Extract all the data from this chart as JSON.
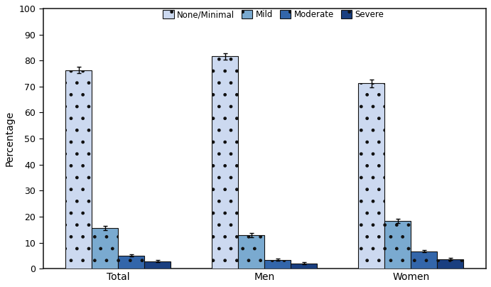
{
  "groups": [
    "Total",
    "Men",
    "Women"
  ],
  "categories": [
    "None/Minimal",
    "Mild",
    "Moderate",
    "Severe"
  ],
  "values": [
    [
      76.3,
      15.6,
      5.1,
      2.9
    ],
    [
      81.6,
      12.8,
      3.4,
      2.1
    ],
    [
      71.3,
      18.3,
      6.7,
      3.7
    ]
  ],
  "errors": [
    [
      1.2,
      0.7,
      0.4,
      0.3
    ],
    [
      1.3,
      0.8,
      0.4,
      0.3
    ],
    [
      1.5,
      0.8,
      0.5,
      0.4
    ]
  ],
  "colors": [
    "#ccd9f0",
    "#7aaad0",
    "#3366aa",
    "#1a3f80"
  ],
  "hatch_patterns": [
    "....",
    "....",
    "....",
    "...."
  ],
  "hatch_colors": [
    "#a0b8e0",
    "#5588bb",
    "#2255aa",
    "#102870"
  ],
  "bar_edge_color": "#111111",
  "ylabel": "Percentage",
  "ylim": [
    0,
    100
  ],
  "yticks": [
    0,
    10,
    20,
    30,
    40,
    50,
    60,
    70,
    80,
    90,
    100
  ],
  "legend_labels": [
    "None/Minimal",
    "Mild",
    "Moderate",
    "Severe"
  ],
  "background_color": "#ffffff",
  "bar_width": 0.14,
  "group_centers": [
    0.22,
    1.0,
    1.78
  ]
}
